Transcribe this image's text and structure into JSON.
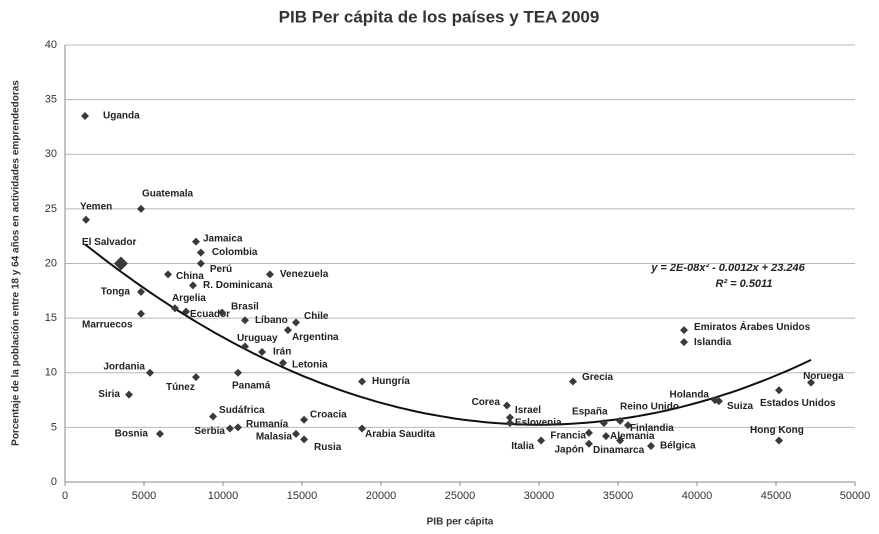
{
  "chart_data": {
    "type": "scatter",
    "title": "PIB Per cápita de los países y TEA 2009",
    "x_label": "PIB per cápita",
    "y_label": "Porcentaje de la población entre 18 y 64 años en actividades emprendedoras",
    "xlim": [
      0,
      50000
    ],
    "ylim": [
      0,
      40
    ],
    "xticks": [
      0,
      5000,
      10000,
      15000,
      20000,
      25000,
      30000,
      35000,
      40000,
      45000,
      50000
    ],
    "yticks": [
      0,
      5,
      10,
      15,
      20,
      25,
      30,
      35,
      40
    ],
    "grid": true,
    "color": "#3a3a3a",
    "trendline": {
      "equation": "y = 2E-08x² - 0.0012x + 23.246",
      "r2": "R² = 0.5011",
      "coefficients": [
        2e-08,
        -0.0012,
        23.246
      ],
      "color": "#111111"
    },
    "points": [
      {
        "label": "Uganda",
        "x": 1266,
        "y": 33.5
      },
      {
        "label": "Yemen",
        "x": 1330,
        "y": 24.0
      },
      {
        "label": "Guatemala",
        "x": 4810,
        "y": 25.0
      },
      {
        "label": "El Salvador",
        "x": 3540,
        "y": 20.0
      },
      {
        "label": "Jamaica",
        "x": 8290,
        "y": 22.0
      },
      {
        "label": "Colombia",
        "x": 8600,
        "y": 21.0
      },
      {
        "label": "Perú",
        "x": 8600,
        "y": 20.0
      },
      {
        "label": "China",
        "x": 6520,
        "y": 19.0
      },
      {
        "label": "R. Dominicana",
        "x": 8100,
        "y": 18.0
      },
      {
        "label": "Venezuela",
        "x": 12970,
        "y": 19.0
      },
      {
        "label": "Tonga",
        "x": 4810,
        "y": 17.4
      },
      {
        "label": "Argelia",
        "x": 6960,
        "y": 15.9
      },
      {
        "label": "Ecuador",
        "x": 7660,
        "y": 15.6
      },
      {
        "label": "Brasil",
        "x": 9940,
        "y": 15.5
      },
      {
        "label": "Marruecos",
        "x": 4810,
        "y": 15.4
      },
      {
        "label": "Líbano",
        "x": 11390,
        "y": 14.8
      },
      {
        "label": "Chile",
        "x": 14620,
        "y": 14.6
      },
      {
        "label": "Argentina",
        "x": 14110,
        "y": 13.9
      },
      {
        "label": "Uruguay",
        "x": 11390,
        "y": 12.4
      },
      {
        "label": "Irán",
        "x": 12470,
        "y": 11.9
      },
      {
        "label": "Letonia",
        "x": 13800,
        "y": 10.9
      },
      {
        "label": "Jordania",
        "x": 5380,
        "y": 10.0
      },
      {
        "label": "Túnez",
        "x": 8290,
        "y": 9.6
      },
      {
        "label": "Panamá",
        "x": 10950,
        "y": 10.0
      },
      {
        "label": "Hungría",
        "x": 18800,
        "y": 9.2
      },
      {
        "label": "Siria",
        "x": 4050,
        "y": 8.0
      },
      {
        "label": "Sudáfrica",
        "x": 9370,
        "y": 6.0
      },
      {
        "label": "Croacia",
        "x": 15130,
        "y": 5.7
      },
      {
        "label": "Rumanía",
        "x": 10950,
        "y": 5.0
      },
      {
        "label": "Serbia",
        "x": 10440,
        "y": 4.9
      },
      {
        "label": "Bosnia",
        "x": 6010,
        "y": 4.4
      },
      {
        "label": "Malasia",
        "x": 14620,
        "y": 4.4
      },
      {
        "label": "Rusia",
        "x": 15130,
        "y": 3.9
      },
      {
        "label": "Arabia Saudita",
        "x": 18800,
        "y": 4.9
      },
      {
        "label": "Corea",
        "x": 27970,
        "y": 7.0
      },
      {
        "label": "Israel",
        "x": 28160,
        "y": 5.9
      },
      {
        "label": "Eslovenia",
        "x": 28160,
        "y": 5.4
      },
      {
        "label": "Italia",
        "x": 30130,
        "y": 3.8
      },
      {
        "label": "Grecia",
        "x": 32150,
        "y": 9.2
      },
      {
        "label": "España",
        "x": 34110,
        "y": 5.4
      },
      {
        "label": "Francia",
        "x": 33160,
        "y": 4.5
      },
      {
        "label": "Japón",
        "x": 33160,
        "y": 3.5
      },
      {
        "label": "Reino Unido",
        "x": 35130,
        "y": 5.6
      },
      {
        "label": "Finlandia",
        "x": 35630,
        "y": 5.2
      },
      {
        "label": "Alemania",
        "x": 34240,
        "y": 4.2
      },
      {
        "label": "Dinamarca",
        "x": 35130,
        "y": 3.8
      },
      {
        "label": "Bélgica",
        "x": 37090,
        "y": 3.3
      },
      {
        "label": "Holanda",
        "x": 41140,
        "y": 7.5
      },
      {
        "label": "Suiza",
        "x": 41390,
        "y": 7.4
      },
      {
        "label": "Emiratos Árabes Unidos",
        "x": 39180,
        "y": 13.9
      },
      {
        "label": "Islandia",
        "x": 39180,
        "y": 12.8
      },
      {
        "label": "Estados Unidos",
        "x": 45190,
        "y": 8.4
      },
      {
        "label": "Noruega",
        "x": 47220,
        "y": 9.1
      },
      {
        "label": "Hong Kong",
        "x": 45190,
        "y": 3.8
      }
    ]
  }
}
